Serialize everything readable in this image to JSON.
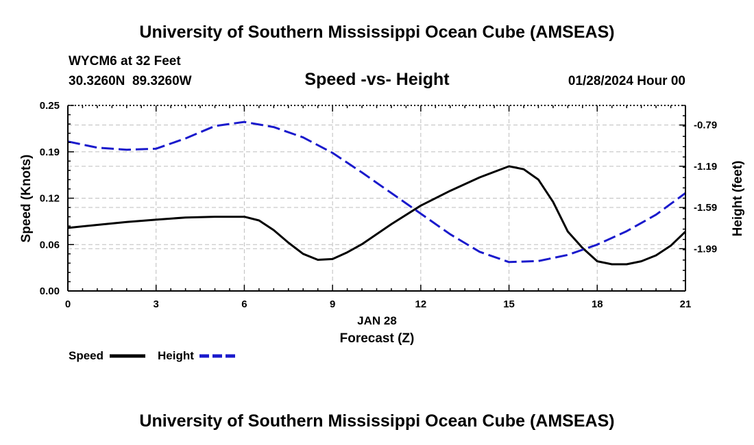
{
  "chart_data": {
    "type": "line",
    "title": "University of Southern Mississippi Ocean Cube (AMSEAS)",
    "footer_title": "University of Southern Mississippi Ocean Cube (AMSEAS)",
    "subtitle": "Speed -vs- Height",
    "station": "WYCM6 at 32 Feet",
    "location": "30.3260N  89.3260W",
    "datetime": "01/28/2024 Hour 00",
    "xlabel_date": "JAN 28",
    "xlabel": "Forecast (Z)",
    "ylabel_left": "Speed (Knots)",
    "ylabel_right": "Height (feet)",
    "xlim": [
      0,
      21
    ],
    "ylim_left": [
      0,
      0.25
    ],
    "ylim_right": [
      -2.4,
      -0.6
    ],
    "x_ticks": [
      0,
      3,
      6,
      9,
      12,
      15,
      18,
      21
    ],
    "x_tick_labels": [
      "0",
      "3",
      "6",
      "9",
      "12",
      "15",
      "18",
      "21"
    ],
    "y_left_ticks": [
      0,
      0.0625,
      0.125,
      0.1875,
      0.25
    ],
    "y_left_tick_labels": [
      "0.00",
      "0.06",
      "0.12",
      "0.19",
      "0.25"
    ],
    "y_right_ticks": [
      -0.79,
      -1.19,
      -1.59,
      -1.99
    ],
    "y_right_tick_labels": [
      "-0.79",
      "-1.19",
      "-1.59",
      "-1.99"
    ],
    "grid": true,
    "legend_position": "bottom-left",
    "series": [
      {
        "name": "Speed",
        "axis": "left",
        "color": "#000000",
        "style": "solid",
        "x": [
          0,
          1,
          2,
          3,
          4,
          5,
          6,
          6.5,
          7,
          7.5,
          8,
          8.5,
          9,
          9.5,
          10,
          11,
          12,
          13,
          14,
          15,
          15.5,
          16,
          16.5,
          17,
          17.5,
          18,
          18.5,
          19,
          19.5,
          20,
          20.5,
          21
        ],
        "values": [
          0.085,
          0.089,
          0.093,
          0.096,
          0.099,
          0.1,
          0.1,
          0.095,
          0.082,
          0.065,
          0.05,
          0.042,
          0.043,
          0.052,
          0.063,
          0.09,
          0.115,
          0.135,
          0.153,
          0.168,
          0.164,
          0.15,
          0.12,
          0.08,
          0.058,
          0.04,
          0.036,
          0.036,
          0.04,
          0.048,
          0.061,
          0.08
        ]
      },
      {
        "name": "Height",
        "axis": "right",
        "color": "#1a1acc",
        "style": "dashed",
        "x": [
          0,
          1,
          2,
          3,
          4,
          5,
          6,
          7,
          8,
          9,
          10,
          11,
          12,
          13,
          14,
          15,
          16,
          17,
          18,
          19,
          20,
          21
        ],
        "values": [
          -0.95,
          -1.01,
          -1.03,
          -1.02,
          -0.92,
          -0.8,
          -0.76,
          -0.81,
          -0.91,
          -1.06,
          -1.25,
          -1.45,
          -1.65,
          -1.85,
          -2.02,
          -2.12,
          -2.11,
          -2.05,
          -1.95,
          -1.82,
          -1.66,
          -1.45
        ]
      }
    ]
  }
}
